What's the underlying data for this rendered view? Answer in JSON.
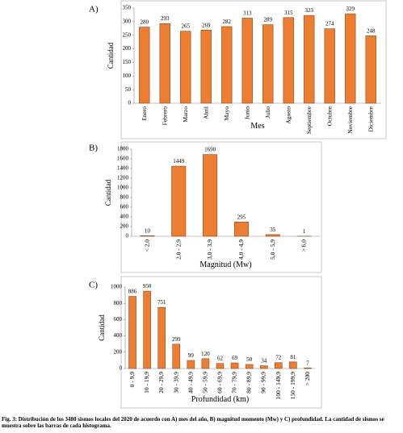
{
  "chart_data": [
    {
      "type": "bar",
      "panel_label": "A)",
      "ylabel": "Cantidad",
      "xlabel": "Mes",
      "categories": [
        "Enero",
        "Febrero",
        "Marzo",
        "Abril",
        "Mayo",
        "Junio",
        "Julio",
        "Agosto",
        "Septiembre",
        "Octubre",
        "Noviembre",
        "Diciembre"
      ],
      "values": [
        280,
        293,
        265,
        269,
        282,
        313,
        289,
        315,
        323,
        274,
        329,
        248
      ],
      "color": "#ed7d31",
      "ylim": [
        0,
        350
      ],
      "yticks": [
        0,
        50,
        100,
        150,
        200,
        250,
        300,
        350
      ],
      "grid": false
    },
    {
      "type": "bar",
      "panel_label": "B)",
      "ylabel": "Cantidad",
      "xlabel": "Magnitud (Mw)",
      "categories": [
        "< 2,0",
        "2,0 - 2,9",
        "3,0 - 3,9",
        "4,0 - 4,9",
        "5,0 - 5,9",
        "> 6,0"
      ],
      "values": [
        10,
        1449,
        1690,
        295,
        35,
        1
      ],
      "color": "#ed7d31",
      "ylim": [
        0,
        1800
      ],
      "yticks": [
        0,
        200,
        400,
        600,
        800,
        1000,
        1200,
        1400,
        1600,
        1800
      ],
      "grid": false
    },
    {
      "type": "bar",
      "panel_label": "C)",
      "ylabel": "Cantidad",
      "xlabel": "Profundidad (km)",
      "categories": [
        "0 - 9,9",
        "10 - 19,9",
        "20 - 29,9",
        "30 - 39,9",
        "40 - 49,9",
        "50 - 59,9",
        "60 - 69,9",
        "70 - 79,9",
        "80 - 89,9",
        "90 - 99,9",
        "100 - 149,9",
        "150 - 199,9",
        "> 200"
      ],
      "values": [
        886,
        950,
        751,
        299,
        99,
        120,
        62,
        69,
        50,
        34,
        72,
        81,
        7
      ],
      "color": "#ed7d31",
      "ylim": [
        0,
        1000
      ],
      "yticks": [
        0,
        200,
        400,
        600,
        800,
        1000
      ],
      "grid": false
    }
  ],
  "caption": "Fig. 3: Distribución de los 3480 sismos locales del 2020 de acuerdo con A) mes del año, B) magnitud momento (Mw) y C) profundidad. La cantidad de sismos se muestra sobre las barras de cada histograma."
}
